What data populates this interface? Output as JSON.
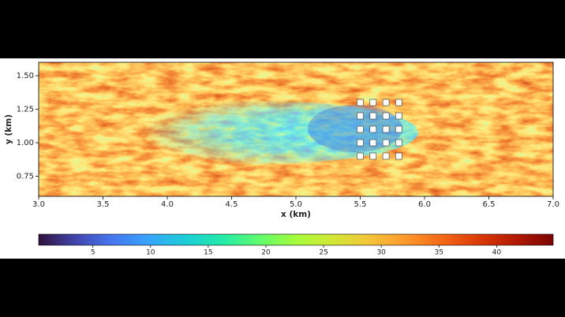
{
  "chart_data": {
    "type": "heatmap",
    "xlabel": "x (km)",
    "ylabel": "y (km)",
    "xlim": [
      3.0,
      7.0
    ],
    "ylim": [
      0.6,
      1.6
    ],
    "xticks": [
      {
        "value": 3.0,
        "label": "3.0"
      },
      {
        "value": 3.5,
        "label": "3.5"
      },
      {
        "value": 4.0,
        "label": "4.0"
      },
      {
        "value": 4.5,
        "label": "4.5"
      },
      {
        "value": 5.0,
        "label": "5.0"
      },
      {
        "value": 5.5,
        "label": "5.5"
      },
      {
        "value": 6.0,
        "label": "6.0"
      },
      {
        "value": 6.5,
        "label": "6.5"
      },
      {
        "value": 7.0,
        "label": "7.0"
      }
    ],
    "yticks": [
      0.75,
      {
        "value": 1.0,
        "label": "1.00"
      },
      1.25,
      {
        "value": 1.5,
        "label": "1.50"
      }
    ],
    "clim": [
      0.3,
      44.9
    ],
    "cticks": [
      5,
      10,
      15,
      20,
      25,
      30,
      35,
      40
    ],
    "colormap": "turbo",
    "markers": {
      "x": [
        5.5,
        5.6,
        5.7,
        5.8,
        5.5,
        5.6,
        5.7,
        5.8,
        5.5,
        5.6,
        5.7,
        5.8,
        5.5,
        5.6,
        5.7,
        5.8,
        5.5,
        5.6,
        5.7,
        5.8
      ],
      "y": [
        1.3,
        1.3,
        1.3,
        1.3,
        1.2,
        1.2,
        1.2,
        1.2,
        1.1,
        1.1,
        1.1,
        1.1,
        1.0,
        1.0,
        1.0,
        1.0,
        0.9,
        0.9,
        0.9,
        0.9
      ],
      "color": "#ffffff"
    }
  }
}
